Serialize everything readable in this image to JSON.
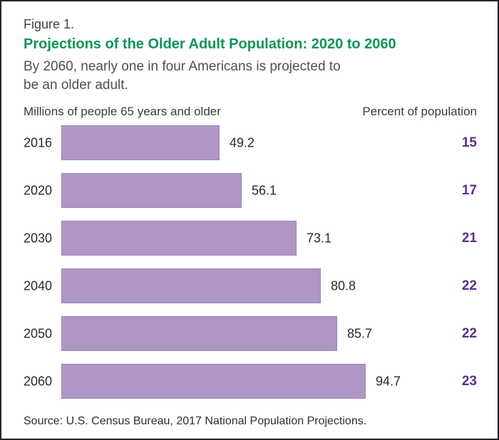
{
  "header": {
    "figure_label": "Figure 1.",
    "title": "Projections of the Older Adult Population: 2020 to 2060",
    "subtitle_line1": "By 2060, nearly one in four Americans is projected to",
    "subtitle_line2": "be an older adult."
  },
  "columns": {
    "left": "Millions of people 65 years and older",
    "right": "Percent of population"
  },
  "footer": {
    "source": "Source: U.S. Census Bureau, 2017 National Population Projections."
  },
  "colors": {
    "title_green": "#0f9557",
    "bar_fill": "#ae97c7",
    "bar_border": "#9c83ba",
    "percent_purple": "#5b2f91",
    "text_dark": "#2b292d",
    "text_gray": "#4f5053",
    "frame_border": "#26262a"
  },
  "chart_data": {
    "type": "bar",
    "orientation": "horizontal",
    "title": "Projections of the Older Adult Population: 2020 to 2060",
    "categories": [
      "2016",
      "2020",
      "2030",
      "2040",
      "2050",
      "2060"
    ],
    "series": [
      {
        "name": "Millions of people 65 years and older",
        "values": [
          49.2,
          56.1,
          73.1,
          80.8,
          85.7,
          94.7
        ]
      },
      {
        "name": "Percent of population",
        "values": [
          15,
          17,
          21,
          22,
          22,
          23
        ]
      }
    ],
    "xlim": [
      0,
      100
    ],
    "grid": false,
    "legend": "none",
    "value_labels_shown": true,
    "bar_color": "#ae97c7"
  }
}
